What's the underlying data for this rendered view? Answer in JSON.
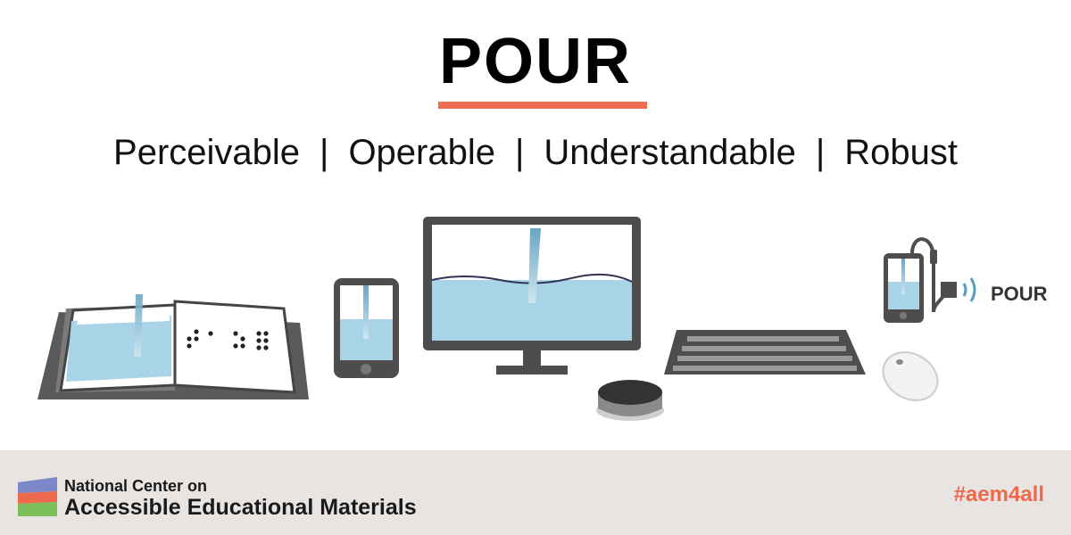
{
  "header": {
    "title": "POUR",
    "principles": [
      "Perceivable",
      "Operable",
      "Understandable",
      "Robust"
    ],
    "separator": "|"
  },
  "illustration": {
    "audio_label": "POUR",
    "devices": [
      "book-with-braille",
      "smartphone",
      "desktop-monitor",
      "switch-button",
      "keyboard",
      "mouse",
      "phone-with-headphones"
    ]
  },
  "footer": {
    "org_line1": "National Center on",
    "org_line2": "Accessible Educational Materials",
    "hashtag": "#aem4all"
  },
  "colors": {
    "accent": "#f06c50",
    "water": "#a9d3e6",
    "device": "#4d4d4d",
    "footer_bg": "#e8e4e2",
    "hashtag": "#ee6a4e"
  }
}
